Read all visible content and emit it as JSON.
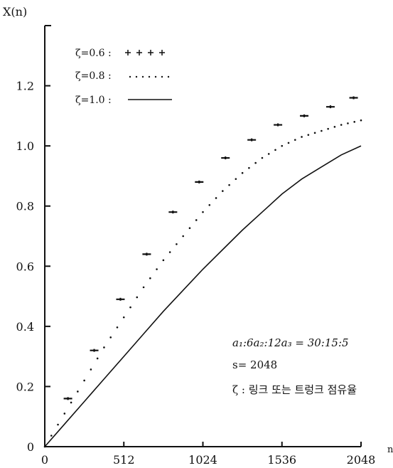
{
  "chart_data": {
    "type": "scatter",
    "ylabel": "X(n)",
    "xlabel": "n",
    "xlim": [
      0,
      2048
    ],
    "ylim": [
      0,
      1.4
    ],
    "x_ticks": [
      {
        "value": 0,
        "label": "0"
      },
      {
        "value": 512,
        "label": "512"
      },
      {
        "value": 1024,
        "label": "1024"
      },
      {
        "value": 1536,
        "label": "1536"
      },
      {
        "value": 2048,
        "label": "2048"
      }
    ],
    "y_ticks": [
      {
        "value": 0,
        "label": "0"
      },
      {
        "value": 0.2,
        "label": "0.2"
      },
      {
        "value": 0.4,
        "label": "0.4"
      },
      {
        "value": 0.6,
        "label": "0.6"
      },
      {
        "value": 0.8,
        "label": "0.8"
      },
      {
        "value": 1.0,
        "label": "1.0"
      },
      {
        "value": 1.2,
        "label": "1.2"
      }
    ],
    "legend_position": "top-left",
    "series": [
      {
        "name": "ζ=0.6",
        "style": "plus",
        "x": [
          150,
          320,
          490,
          660,
          830,
          1000,
          1170,
          1340,
          1510,
          1680,
          1850,
          2000
        ],
        "y": [
          0.16,
          0.32,
          0.49,
          0.64,
          0.78,
          0.88,
          0.96,
          1.02,
          1.07,
          1.1,
          1.13,
          1.16
        ]
      },
      {
        "name": "ζ=0.8",
        "style": "dotted",
        "x": [
          0,
          128,
          256,
          384,
          512,
          640,
          768,
          896,
          1024,
          1152,
          1280,
          1408,
          1536,
          1664,
          1792,
          1920,
          2048
        ],
        "y": [
          0,
          0.11,
          0.22,
          0.33,
          0.43,
          0.53,
          0.62,
          0.7,
          0.78,
          0.85,
          0.91,
          0.96,
          1.0,
          1.03,
          1.05,
          1.07,
          1.085
        ]
      },
      {
        "name": "ζ=1.0",
        "style": "solid",
        "x": [
          0,
          128,
          256,
          384,
          512,
          640,
          768,
          896,
          1024,
          1152,
          1280,
          1408,
          1536,
          1664,
          1792,
          1920,
          2048
        ],
        "y": [
          0,
          0.075,
          0.15,
          0.225,
          0.3,
          0.375,
          0.45,
          0.52,
          0.59,
          0.655,
          0.72,
          0.78,
          0.84,
          0.89,
          0.93,
          0.97,
          1.0
        ]
      }
    ],
    "annotations": [
      "a₁:6a₂:12a₃ = 30:15:5",
      "s= 2048",
      "ζ : 링크 또는 트렁크 점유율"
    ]
  }
}
